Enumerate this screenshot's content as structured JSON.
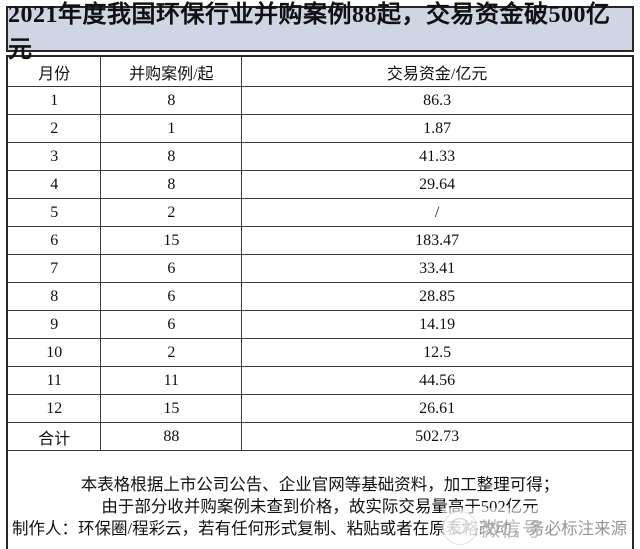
{
  "chart_data": {
    "type": "table",
    "title": "2021年度我国环保行业并购案例88起，交易资金破500亿元",
    "columns": [
      "月份",
      "并购案例/起",
      "交易资金/亿元"
    ],
    "rows": [
      [
        "1",
        "8",
        "86.3"
      ],
      [
        "2",
        "1",
        "1.87"
      ],
      [
        "3",
        "8",
        "41.33"
      ],
      [
        "4",
        "8",
        "29.64"
      ],
      [
        "5",
        "2",
        "/"
      ],
      [
        "6",
        "15",
        "183.47"
      ],
      [
        "7",
        "6",
        "33.41"
      ],
      [
        "8",
        "6",
        "28.85"
      ],
      [
        "9",
        "6",
        "14.19"
      ],
      [
        "10",
        "2",
        "12.5"
      ],
      [
        "11",
        "11",
        "44.56"
      ],
      [
        "12",
        "15",
        "26.61"
      ],
      [
        "合计",
        "88",
        "502.73"
      ]
    ],
    "notes": [
      "本表格根据上市公司公告、企业官网等基础资料，加工整理可得；",
      "由于部分收并购案例未查到价格，故实际交易量高于502亿元",
      "制作人：环保圈/程彩云，若有任何形式复制、粘贴或者在原表格改动，务必标注来源"
    ]
  },
  "footer": {
    "line1": "本表格根据上市公司公告、企业官网等基础资料，加工整理可得；",
    "line2": "由于部分收并购案例未查到价格，故实际交易量高于502亿元",
    "line3": "制作人：环保圈/程彩云，若有任何形式复制、粘贴或者在原表格改动，务必标注来源"
  },
  "watermark": {
    "label": "微信号",
    "icon": "wechat-bubble-icon"
  },
  "colors": {
    "title_bg": "#cfd5e2",
    "table_border": "#262626",
    "grid_line": "#3c3c3c",
    "text": "#111111",
    "watermark_text": "#b3b3b3"
  }
}
